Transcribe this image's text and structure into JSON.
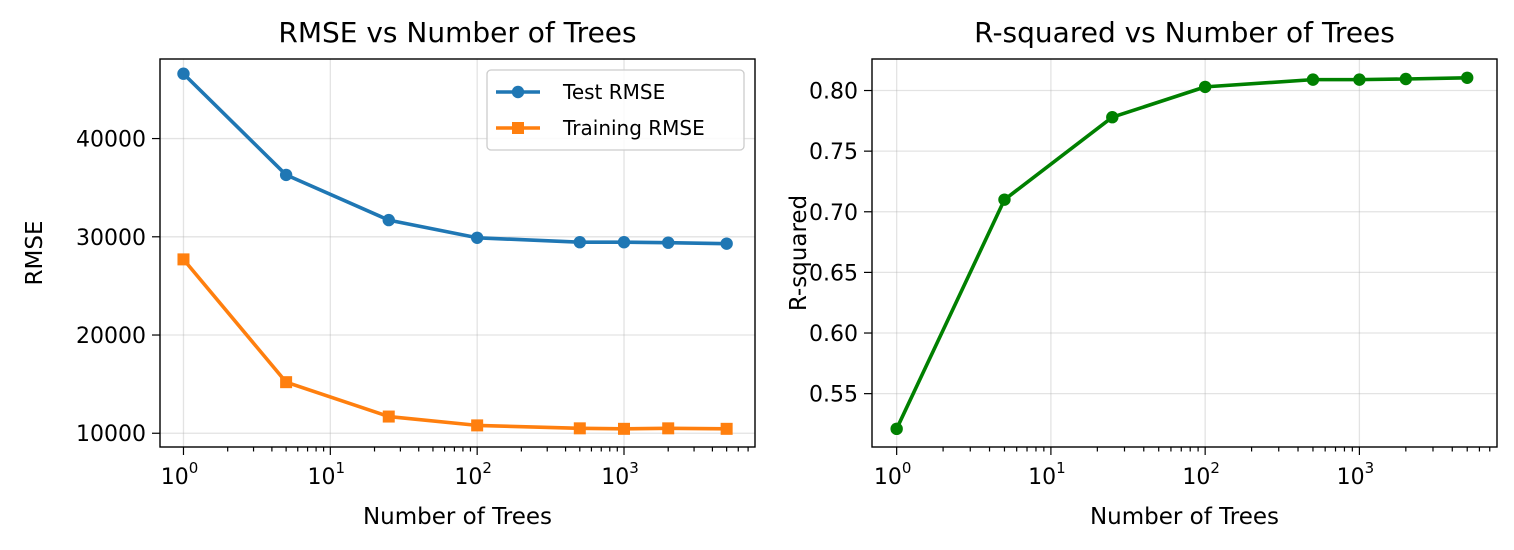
{
  "chart_data": [
    {
      "type": "line",
      "title": "RMSE vs Number of Trees",
      "xlabel": "Number of Trees",
      "ylabel": "RMSE",
      "xscale": "log",
      "x_tick_labels": [
        {
          "base": "10",
          "exp": "0"
        },
        {
          "base": "10",
          "exp": "1"
        },
        {
          "base": "10",
          "exp": "2"
        },
        {
          "base": "10",
          "exp": "3"
        }
      ],
      "y_tick_labels": [
        "10000",
        "20000",
        "30000",
        "40000"
      ],
      "ylim": [
        8600,
        48100
      ],
      "grid": true,
      "legend_placement": "upper right",
      "x": [
        1,
        5,
        25,
        100,
        500,
        1000,
        2000,
        5000
      ],
      "series": [
        {
          "name": "Test RMSE",
          "color": "#1f77b4",
          "marker": "circle",
          "values": [
            46600,
            36300,
            31700,
            29900,
            29450,
            29450,
            29400,
            29300
          ]
        },
        {
          "name": "Training RMSE",
          "color": "#ff7f0e",
          "marker": "square",
          "values": [
            27700,
            15200,
            11700,
            10800,
            10500,
            10450,
            10500,
            10450
          ]
        }
      ]
    },
    {
      "type": "line",
      "title": "R-squared vs Number of Trees",
      "xlabel": "Number of Trees",
      "ylabel": "R-squared",
      "xscale": "log",
      "x_tick_labels": [
        {
          "base": "10",
          "exp": "0"
        },
        {
          "base": "10",
          "exp": "1"
        },
        {
          "base": "10",
          "exp": "2"
        },
        {
          "base": "10",
          "exp": "3"
        }
      ],
      "y_tick_labels": [
        "0.55",
        "0.60",
        "0.65",
        "0.70",
        "0.75",
        "0.80"
      ],
      "ylim": [
        0.506,
        0.826
      ],
      "grid": true,
      "x": [
        1,
        5,
        25,
        100,
        500,
        1000,
        2000,
        5000
      ],
      "series": [
        {
          "name": "",
          "color": "#008000",
          "marker": "circle",
          "values": [
            0.521,
            0.71,
            0.778,
            0.803,
            0.809,
            0.809,
            0.8095,
            0.8105
          ]
        }
      ]
    }
  ]
}
